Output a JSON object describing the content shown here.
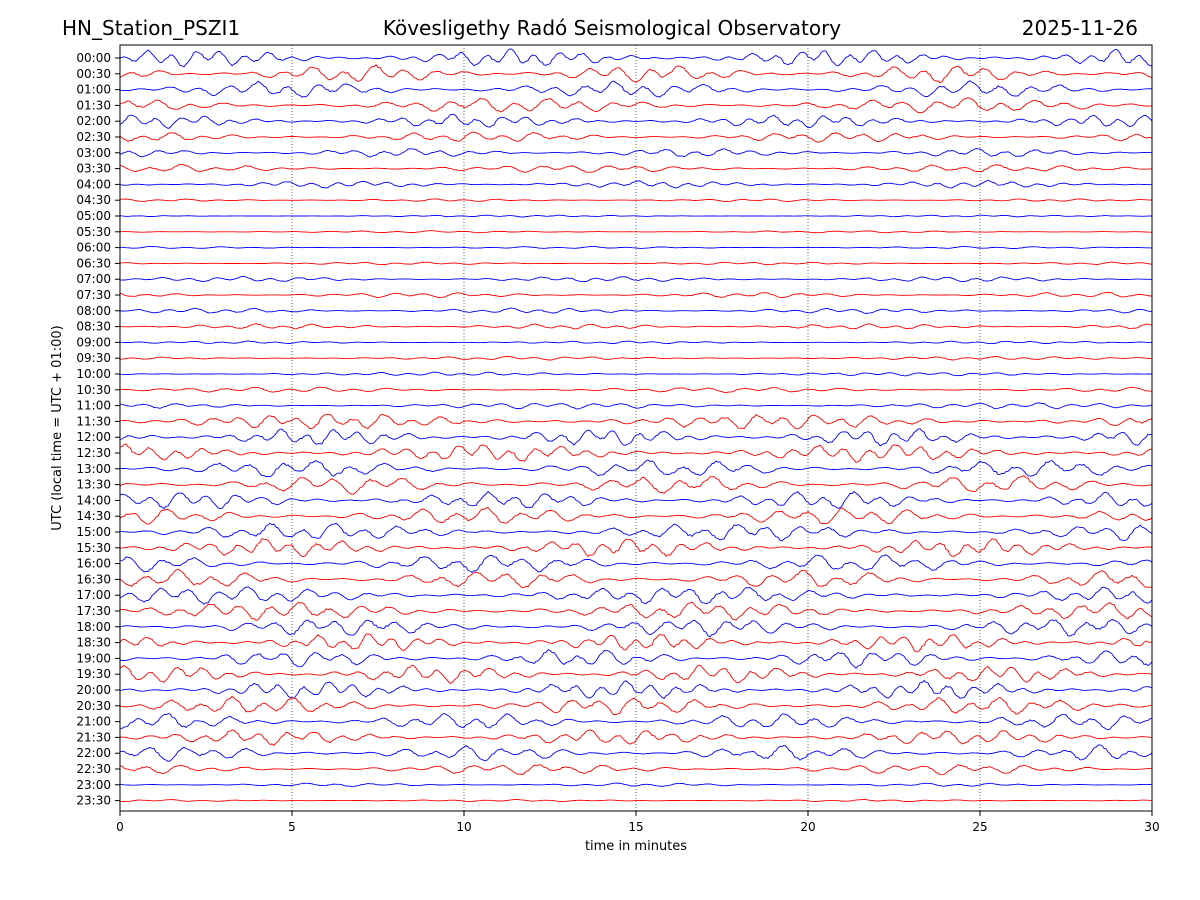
{
  "header": {
    "station": "HN_Station_PSZI1",
    "observatory": "Kövesligethy Radó Seismological Observatory",
    "date": "2025-11-26"
  },
  "chart_data": {
    "type": "line",
    "title": "Kövesligethy Radó Seismological Observatory",
    "xlabel": "time in minutes",
    "ylabel": "UTC (local time = UTC + 01:00)",
    "xlim": [
      0,
      30
    ],
    "x_ticks": [
      "0",
      "5",
      "10",
      "15",
      "20",
      "25",
      "30"
    ],
    "grid": "vertical dotted lines at each x tick",
    "trace_colors": [
      "#0000ff",
      "#ff0000"
    ],
    "trace_labels": [
      "00:00",
      "00:30",
      "01:00",
      "01:30",
      "02:00",
      "02:30",
      "03:00",
      "03:30",
      "04:00",
      "04:30",
      "05:00",
      "05:30",
      "06:00",
      "06:30",
      "07:00",
      "07:30",
      "08:00",
      "08:30",
      "09:00",
      "09:30",
      "10:00",
      "10:30",
      "11:00",
      "11:30",
      "12:00",
      "12:30",
      "13:00",
      "13:30",
      "14:00",
      "14:30",
      "15:00",
      "15:30",
      "16:00",
      "16:30",
      "17:00",
      "17:30",
      "18:00",
      "18:30",
      "19:00",
      "19:30",
      "20:00",
      "20:30",
      "21:00",
      "21:30",
      "22:00",
      "22:30",
      "23:00",
      "23:30"
    ],
    "trace_amplitude": [
      1.0,
      1.0,
      0.9,
      0.85,
      0.75,
      0.6,
      0.5,
      0.45,
      0.4,
      0.15,
      0.1,
      0.12,
      0.12,
      0.15,
      0.3,
      0.3,
      0.3,
      0.3,
      0.15,
      0.2,
      0.2,
      0.3,
      0.35,
      0.9,
      1.0,
      1.0,
      1.0,
      1.0,
      1.0,
      1.0,
      1.0,
      1.0,
      1.0,
      1.0,
      1.0,
      1.0,
      1.0,
      1.0,
      1.0,
      1.0,
      1.0,
      1.0,
      0.9,
      0.85,
      0.85,
      0.6,
      0.2,
      0.12
    ]
  }
}
